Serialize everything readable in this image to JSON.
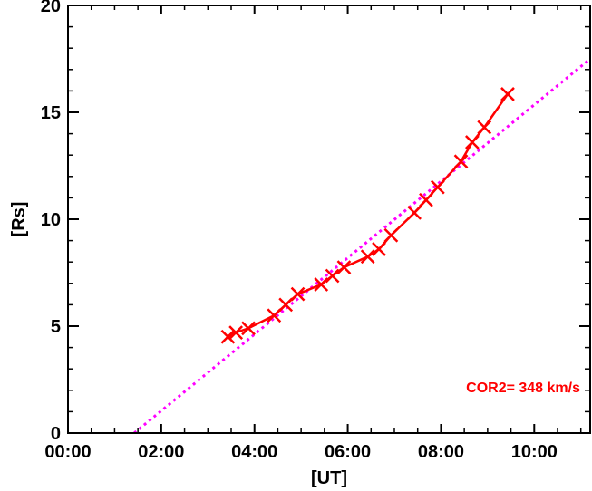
{
  "chart_data": {
    "type": "line",
    "xlabel": "[UT]",
    "ylabel": "[Rs]",
    "x_unit": "hours UT",
    "xlim": [
      0,
      11.2
    ],
    "ylim": [
      0,
      20
    ],
    "x_ticks": [
      {
        "value": 0,
        "label": "00:00"
      },
      {
        "value": 2,
        "label": "02:00"
      },
      {
        "value": 4,
        "label": "04:00"
      },
      {
        "value": 6,
        "label": "06:00"
      },
      {
        "value": 8,
        "label": "08:00"
      },
      {
        "value": 10,
        "label": "10:00"
      }
    ],
    "y_ticks": [
      {
        "value": 0,
        "label": "0"
      },
      {
        "value": 5,
        "label": "5"
      },
      {
        "value": 10,
        "label": "10"
      },
      {
        "value": 15,
        "label": "15"
      },
      {
        "value": 20,
        "label": "20"
      }
    ],
    "grid": false,
    "series": [
      {
        "name": "",
        "style": "solid line with x markers",
        "color": "#ff0000",
        "x": [
          3.43,
          3.6,
          3.87,
          4.42,
          4.67,
          4.93,
          5.43,
          5.67,
          5.92,
          6.43,
          6.67,
          6.93,
          7.43,
          7.68,
          7.93,
          8.43,
          8.67,
          8.93,
          9.43
        ],
        "y": [
          4.5,
          4.7,
          4.9,
          5.5,
          6.0,
          6.5,
          6.95,
          7.35,
          7.75,
          8.25,
          8.6,
          9.25,
          10.3,
          10.9,
          11.5,
          12.7,
          13.6,
          14.3,
          15.85
        ]
      },
      {
        "name": "",
        "style": "dotted linear fit",
        "color": "#ff00ff",
        "x": [
          1.42,
          11.2
        ],
        "y": [
          0,
          17.5
        ]
      }
    ],
    "annotations": [
      {
        "text": "COR2=  348 km/s",
        "color": "#ff0000",
        "placement": "bottom-right"
      }
    ]
  }
}
